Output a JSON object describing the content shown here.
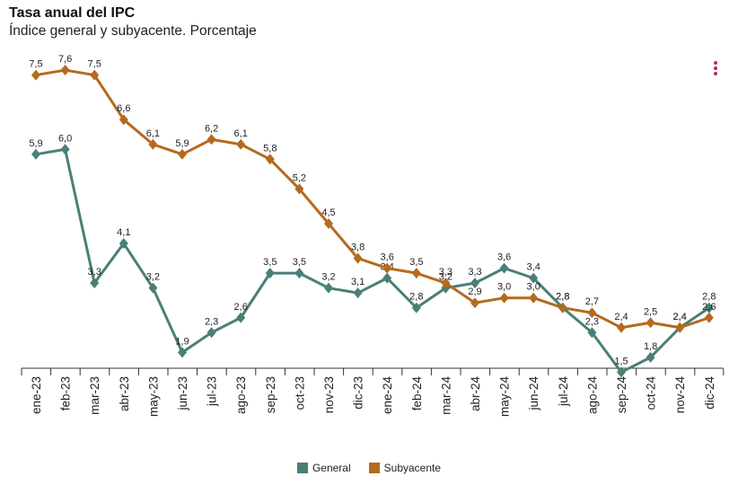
{
  "chart_data": {
    "type": "line",
    "title": "Tasa anual del IPC",
    "subtitle": "Índice general y subyacente. Porcentaje",
    "categories": [
      "ene-23",
      "feb-23",
      "mar-23",
      "abr-23",
      "may-23",
      "jun-23",
      "jul-23",
      "ago-23",
      "sep-23",
      "oct-23",
      "nov-23",
      "dic-23",
      "ene-24",
      "feb-24",
      "mar-24",
      "abr-24",
      "may-24",
      "jun-24",
      "jul-24",
      "ago-24",
      "sep-24",
      "oct-24",
      "nov-24",
      "dic-24"
    ],
    "series": [
      {
        "name": "General",
        "color": "#4a7f77",
        "values": [
          5.9,
          6.0,
          3.3,
          4.1,
          3.2,
          1.9,
          2.3,
          2.6,
          3.5,
          3.5,
          3.2,
          3.1,
          3.4,
          2.8,
          3.2,
          3.3,
          3.6,
          3.4,
          2.8,
          2.3,
          1.5,
          1.8,
          2.4,
          2.8
        ],
        "labels": [
          "5,9",
          "6,0",
          "3,3",
          "4,1",
          "3,2",
          "1,9",
          "2,3",
          "2,6",
          "3,5",
          "3,5",
          "3,2",
          "3,1",
          "3,4",
          "2,8",
          "3,2",
          "3,3",
          "3,6",
          "3,4",
          "2,8",
          "2,3",
          "1,5",
          "1,8",
          "2,4",
          "2,8"
        ]
      },
      {
        "name": "Subyacente",
        "color": "#b56a1e",
        "values": [
          7.5,
          7.6,
          7.5,
          6.6,
          6.1,
          5.9,
          6.2,
          6.1,
          5.8,
          5.2,
          4.5,
          3.8,
          3.6,
          3.5,
          3.3,
          2.9,
          3.0,
          3.0,
          2.8,
          2.7,
          2.4,
          2.5,
          2.4,
          2.6
        ],
        "labels": [
          "7,5",
          "7,6",
          "7,5",
          "6,6",
          "6,1",
          "5,9",
          "6,2",
          "6,1",
          "5,8",
          "5,2",
          "4,5",
          "3,8",
          "3,6",
          "3,5",
          "3,3",
          "2,9",
          "3,0",
          "3,0",
          "2,8",
          "2,7",
          "2,4",
          "2,5",
          "2,4",
          "2,6"
        ]
      }
    ],
    "ylim": [
      0.8,
      8.0
    ],
    "grid": false,
    "legend_position": "bottom"
  }
}
